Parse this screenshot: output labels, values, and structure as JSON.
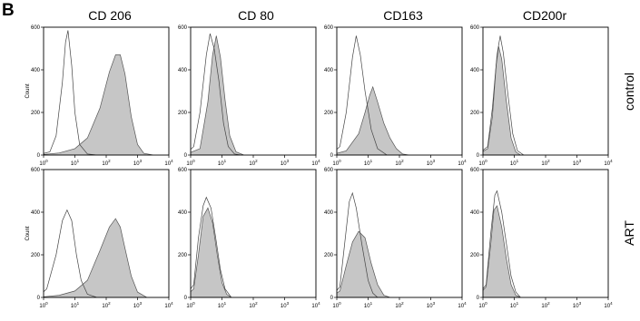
{
  "panel_label": "B",
  "chart_data": {
    "type": "histogram-grid",
    "columns": [
      "CD 206",
      "CD 80",
      "CD163",
      "CD200r"
    ],
    "rows": [
      "control",
      "ART"
    ],
    "ylabel": "Count",
    "x_scale": "log10",
    "xlim": [
      1,
      10000
    ],
    "ylim": [
      0,
      600
    ],
    "y_ticks": [
      0,
      200,
      400,
      600
    ],
    "x_tick_labels": [
      {
        "base": "10",
        "exp": "0"
      },
      {
        "base": "10",
        "exp": "1"
      },
      {
        "base": "10",
        "exp": "2"
      },
      {
        "base": "10",
        "exp": "3"
      },
      {
        "base": "10",
        "exp": "4"
      }
    ],
    "colors": {
      "filled_fill": "#c6c6c6",
      "filled_stroke": "#555555",
      "open_stroke": "#444444",
      "frame": "#000000"
    },
    "panels": [
      {
        "row": "control",
        "column": "CD 206",
        "show_ylabel": true,
        "open": [
          [
            -0.2,
            0
          ],
          [
            0.2,
            15
          ],
          [
            0.4,
            90
          ],
          [
            0.6,
            340
          ],
          [
            0.7,
            530
          ],
          [
            0.78,
            585
          ],
          [
            0.9,
            420
          ],
          [
            1.0,
            200
          ],
          [
            1.15,
            50
          ],
          [
            1.4,
            5
          ],
          [
            1.7,
            0
          ]
        ],
        "filled": [
          [
            -0.2,
            0
          ],
          [
            0.5,
            10
          ],
          [
            1.0,
            30
          ],
          [
            1.4,
            80
          ],
          [
            1.8,
            220
          ],
          [
            2.1,
            390
          ],
          [
            2.3,
            470
          ],
          [
            2.45,
            470
          ],
          [
            2.6,
            380
          ],
          [
            2.8,
            180
          ],
          [
            3.0,
            50
          ],
          [
            3.2,
            8
          ],
          [
            3.5,
            0
          ]
        ]
      },
      {
        "row": "control",
        "column": "CD 80",
        "show_ylabel": false,
        "open": [
          [
            -0.2,
            0
          ],
          [
            0.1,
            40
          ],
          [
            0.3,
            200
          ],
          [
            0.5,
            470
          ],
          [
            0.62,
            570
          ],
          [
            0.75,
            500
          ],
          [
            0.9,
            350
          ],
          [
            1.05,
            150
          ],
          [
            1.2,
            40
          ],
          [
            1.4,
            5
          ],
          [
            1.6,
            0
          ]
        ],
        "filled": [
          [
            -0.2,
            0
          ],
          [
            0.3,
            30
          ],
          [
            0.55,
            250
          ],
          [
            0.7,
            470
          ],
          [
            0.82,
            560
          ],
          [
            0.95,
            460
          ],
          [
            1.1,
            260
          ],
          [
            1.25,
            90
          ],
          [
            1.45,
            15
          ],
          [
            1.7,
            0
          ]
        ]
      },
      {
        "row": "control",
        "column": "CD163",
        "show_ylabel": false,
        "open": [
          [
            -0.2,
            0
          ],
          [
            0.1,
            40
          ],
          [
            0.3,
            200
          ],
          [
            0.5,
            460
          ],
          [
            0.62,
            560
          ],
          [
            0.75,
            470
          ],
          [
            0.9,
            300
          ],
          [
            1.1,
            120
          ],
          [
            1.3,
            30
          ],
          [
            1.6,
            0
          ]
        ],
        "filled": [
          [
            -0.2,
            0
          ],
          [
            0.3,
            20
          ],
          [
            0.7,
            100
          ],
          [
            0.9,
            200
          ],
          [
            1.05,
            280
          ],
          [
            1.15,
            320
          ],
          [
            1.3,
            250
          ],
          [
            1.5,
            150
          ],
          [
            1.7,
            80
          ],
          [
            1.9,
            30
          ],
          [
            2.1,
            5
          ],
          [
            2.3,
            0
          ]
        ]
      },
      {
        "row": "control",
        "column": "CD200r",
        "show_ylabel": false,
        "open": [
          [
            -0.2,
            0
          ],
          [
            0.15,
            40
          ],
          [
            0.3,
            220
          ],
          [
            0.45,
            470
          ],
          [
            0.55,
            560
          ],
          [
            0.65,
            480
          ],
          [
            0.8,
            280
          ],
          [
            0.95,
            100
          ],
          [
            1.1,
            20
          ],
          [
            1.3,
            0
          ]
        ],
        "filled": [
          [
            -0.2,
            0
          ],
          [
            0.15,
            30
          ],
          [
            0.3,
            180
          ],
          [
            0.42,
            420
          ],
          [
            0.5,
            510
          ],
          [
            0.6,
            450
          ],
          [
            0.75,
            250
          ],
          [
            0.9,
            80
          ],
          [
            1.05,
            15
          ],
          [
            1.2,
            0
          ]
        ]
      },
      {
        "row": "ART",
        "column": "CD 206",
        "show_ylabel": true,
        "open": [
          [
            -0.2,
            0
          ],
          [
            0.1,
            40
          ],
          [
            0.4,
            200
          ],
          [
            0.6,
            360
          ],
          [
            0.75,
            410
          ],
          [
            0.9,
            360
          ],
          [
            1.05,
            200
          ],
          [
            1.2,
            80
          ],
          [
            1.4,
            15
          ],
          [
            1.7,
            0
          ]
        ],
        "filled": [
          [
            -0.2,
            0
          ],
          [
            0.5,
            10
          ],
          [
            1.0,
            30
          ],
          [
            1.4,
            80
          ],
          [
            1.8,
            220
          ],
          [
            2.1,
            330
          ],
          [
            2.3,
            370
          ],
          [
            2.45,
            330
          ],
          [
            2.6,
            230
          ],
          [
            2.8,
            100
          ],
          [
            3.0,
            25
          ],
          [
            3.3,
            0
          ]
        ]
      },
      {
        "row": "ART",
        "column": "CD 80",
        "show_ylabel": false,
        "open": [
          [
            -0.2,
            0
          ],
          [
            0.1,
            60
          ],
          [
            0.25,
            280
          ],
          [
            0.4,
            430
          ],
          [
            0.5,
            470
          ],
          [
            0.65,
            420
          ],
          [
            0.8,
            280
          ],
          [
            0.95,
            130
          ],
          [
            1.1,
            40
          ],
          [
            1.3,
            0
          ]
        ],
        "filled": [
          [
            -0.2,
            0
          ],
          [
            0.1,
            40
          ],
          [
            0.25,
            200
          ],
          [
            0.4,
            380
          ],
          [
            0.55,
            420
          ],
          [
            0.7,
            350
          ],
          [
            0.85,
            200
          ],
          [
            1.0,
            70
          ],
          [
            1.15,
            15
          ],
          [
            1.3,
            0
          ]
        ]
      },
      {
        "row": "ART",
        "column": "CD163",
        "show_ylabel": false,
        "open": [
          [
            -0.2,
            0
          ],
          [
            0.1,
            50
          ],
          [
            0.25,
            250
          ],
          [
            0.4,
            450
          ],
          [
            0.5,
            490
          ],
          [
            0.62,
            420
          ],
          [
            0.8,
            250
          ],
          [
            1.0,
            80
          ],
          [
            1.15,
            20
          ],
          [
            1.3,
            0
          ]
        ],
        "filled": [
          [
            -0.2,
            0
          ],
          [
            0.1,
            30
          ],
          [
            0.3,
            150
          ],
          [
            0.5,
            260
          ],
          [
            0.7,
            310
          ],
          [
            0.9,
            280
          ],
          [
            1.1,
            160
          ],
          [
            1.3,
            60
          ],
          [
            1.5,
            10
          ],
          [
            1.7,
            0
          ]
        ]
      },
      {
        "row": "ART",
        "column": "CD200r",
        "show_ylabel": false,
        "open": [
          [
            -0.2,
            0
          ],
          [
            0.1,
            60
          ],
          [
            0.25,
            300
          ],
          [
            0.38,
            480
          ],
          [
            0.45,
            500
          ],
          [
            0.6,
            400
          ],
          [
            0.75,
            250
          ],
          [
            0.9,
            100
          ],
          [
            1.05,
            25
          ],
          [
            1.2,
            0
          ]
        ],
        "filled": [
          [
            -0.2,
            0
          ],
          [
            0.1,
            50
          ],
          [
            0.25,
            250
          ],
          [
            0.35,
            410
          ],
          [
            0.45,
            430
          ],
          [
            0.6,
            330
          ],
          [
            0.75,
            180
          ],
          [
            0.9,
            60
          ],
          [
            1.05,
            10
          ],
          [
            1.2,
            0
          ]
        ]
      }
    ]
  }
}
